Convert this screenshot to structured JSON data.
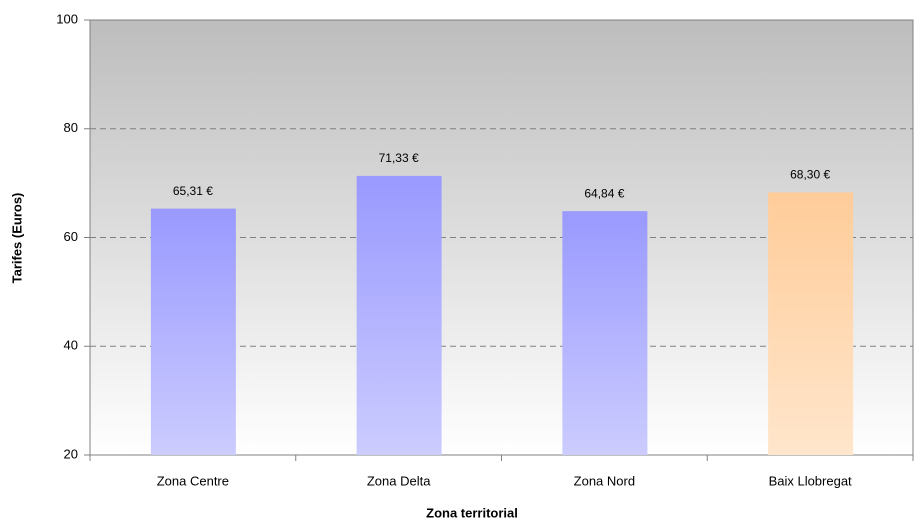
{
  "chart_data": {
    "type": "bar",
    "x_label": "Zona territorial",
    "y_label": "Tarifes (Euros)",
    "categories": [
      "Zona Centre",
      "Zona Delta",
      "Zona Nord",
      "Baix Llobregat"
    ],
    "values": [
      65.31,
      71.33,
      64.84,
      68.3
    ],
    "value_labels": [
      "65,31 €",
      "71,33 €",
      "64,84 €",
      "68,30 €"
    ],
    "colors": [
      "#9999ff",
      "#9999ff",
      "#9999ff",
      "#ffcc99"
    ],
    "ylim": [
      20,
      100
    ],
    "yticks": [
      20,
      40,
      60,
      80,
      100
    ],
    "grid": true
  }
}
